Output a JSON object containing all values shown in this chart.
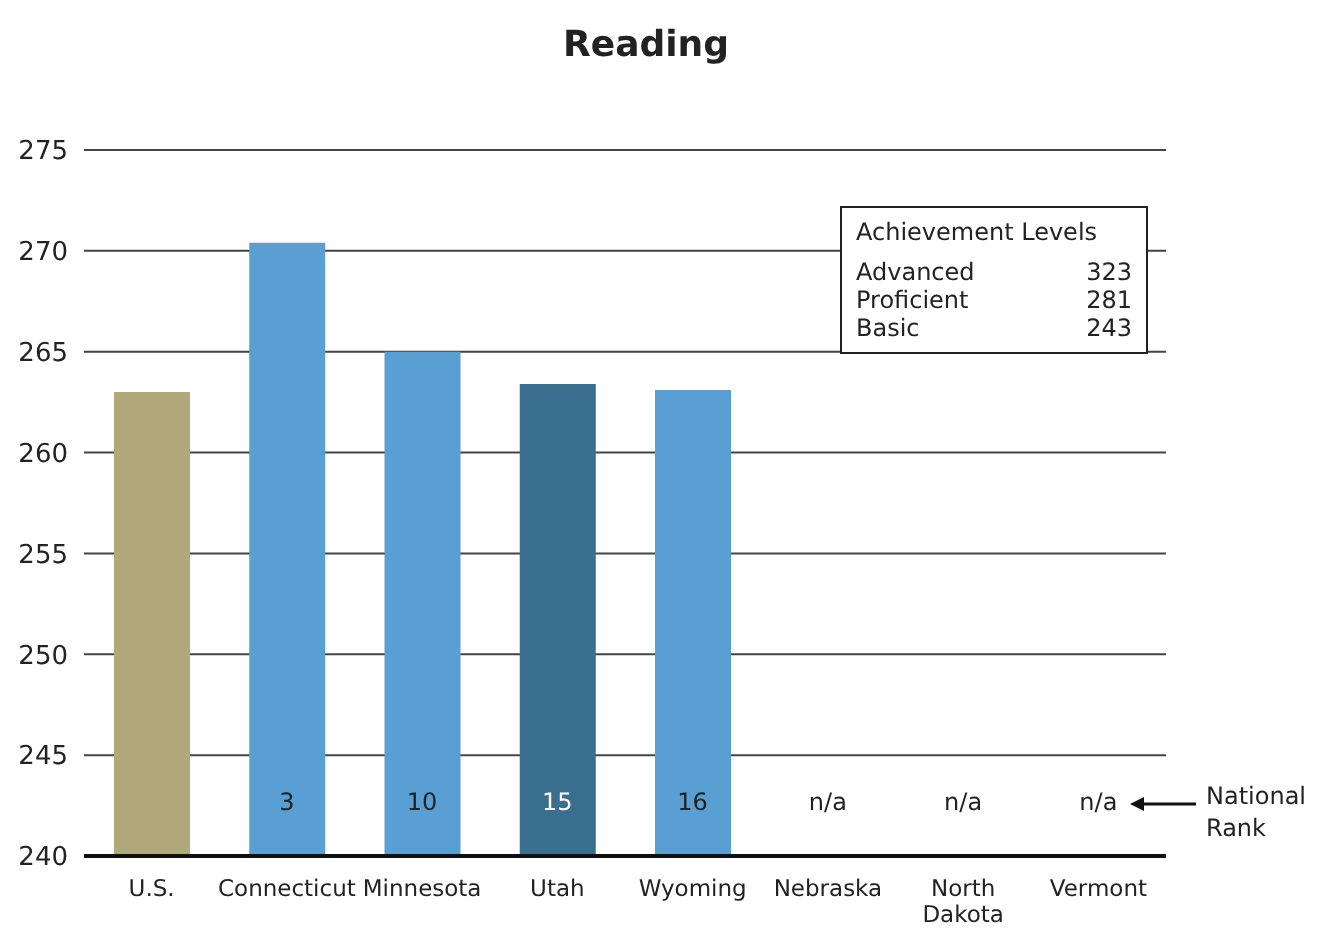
{
  "chart_data": {
    "type": "bar",
    "title": "Reading",
    "categories": [
      "U.S.",
      "Connecticut",
      "Minnesota",
      "Utah",
      "Wyoming",
      "Nebraska",
      "North Dakota",
      "Vermont"
    ],
    "values": [
      263,
      270.4,
      265,
      263.4,
      263.1,
      null,
      null,
      null
    ],
    "colors": [
      "#b0a97a",
      "#5a9fd4",
      "#5a9fd4",
      "#3a6e8f",
      "#5a9fd4",
      "#5a9fd4",
      "#5a9fd4",
      "#5a9fd4"
    ],
    "ylim": [
      240,
      275
    ],
    "yticks": [
      240,
      245,
      250,
      255,
      260,
      265,
      270,
      275
    ],
    "grid": "y",
    "annotations": [
      "Achievement Levels",
      "Advanced",
      "323",
      "Proficient",
      "281",
      "Basic",
      "243",
      "National Rank",
      "3",
      "10",
      "15",
      "16",
      "n/a",
      "n/a",
      "n/a"
    ]
  }
}
